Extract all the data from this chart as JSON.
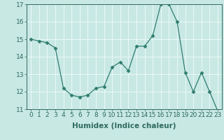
{
  "x": [
    0,
    1,
    2,
    3,
    4,
    5,
    6,
    7,
    8,
    9,
    10,
    11,
    12,
    13,
    14,
    15,
    16,
    17,
    18,
    19,
    20,
    21,
    22,
    23
  ],
  "y": [
    15.0,
    14.9,
    14.8,
    14.5,
    12.2,
    11.8,
    11.7,
    11.8,
    12.2,
    12.3,
    13.4,
    13.7,
    13.2,
    14.6,
    14.6,
    15.2,
    17.0,
    17.0,
    16.0,
    13.1,
    12.0,
    13.1,
    12.0,
    10.9
  ],
  "line_color": "#2e7d6e",
  "marker": "D",
  "marker_size": 2.5,
  "bg_color": "#c8e8e4",
  "grid_color": "#e8f8f5",
  "xlabel": "Humidex (Indice chaleur)",
  "xlim": [
    -0.5,
    23.5
  ],
  "ylim": [
    11,
    17
  ],
  "yticks": [
    11,
    12,
    13,
    14,
    15,
    16,
    17
  ],
  "xticks": [
    0,
    1,
    2,
    3,
    4,
    5,
    6,
    7,
    8,
    9,
    10,
    11,
    12,
    13,
    14,
    15,
    16,
    17,
    18,
    19,
    20,
    21,
    22,
    23
  ],
  "tick_color": "#2e6b5e",
  "label_color": "#2e6b5e",
  "font_size": 6.5,
  "xlabel_fontsize": 7.5
}
